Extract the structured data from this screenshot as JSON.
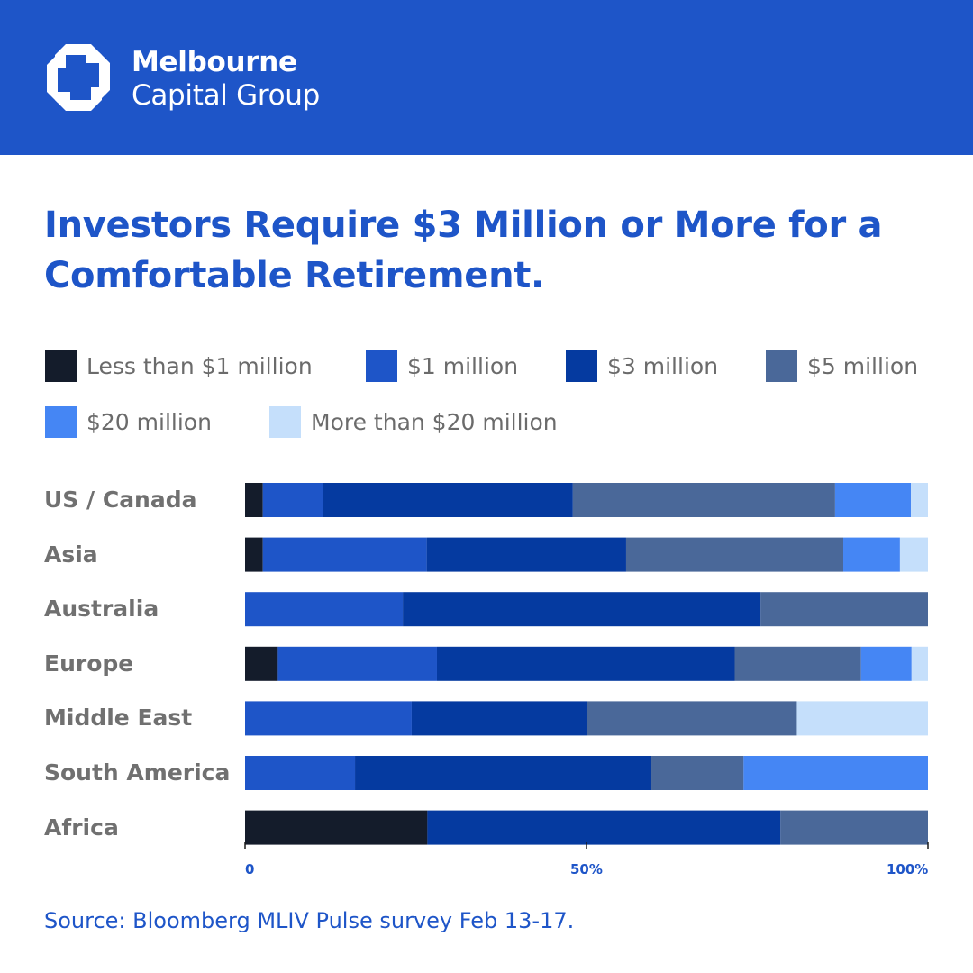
{
  "brand": {
    "name_line1": "Melbourne",
    "name_line2": "Capital Group",
    "logo_icon": "octagon-knot-icon",
    "color": "#1e55c8"
  },
  "source": "Source: Bloomberg MLIV Pulse survey Feb 13-17.",
  "chart_data": {
    "type": "bar",
    "orientation": "horizontal",
    "stacked": true,
    "title": "Investors Require $3 Million or More for a Comfortable Retirement.",
    "categories": [
      "US / Canada",
      "Asia",
      "Australia",
      "Europe",
      "Middle East",
      "South America",
      "Africa"
    ],
    "xlim": [
      0,
      100
    ],
    "x_ticks": [
      {
        "value": 0,
        "label": "0"
      },
      {
        "value": 50,
        "label": "50%"
      },
      {
        "value": 100,
        "label": "100%"
      }
    ],
    "grid": false,
    "legend_position": "top",
    "series": [
      {
        "name": "Less than $1 million",
        "color": "#141c2b",
        "values": [
          2.6,
          2.6,
          0,
          4.8,
          0,
          0,
          26.7
        ]
      },
      {
        "name": "$1 million",
        "color": "#1e55c8",
        "values": [
          8.8,
          24.0,
          23.1,
          23.3,
          24.4,
          16.1,
          0
        ]
      },
      {
        "name": "$3 million",
        "color": "#053aa0",
        "values": [
          36.6,
          29.2,
          52.4,
          43.6,
          25.6,
          43.4,
          51.7
        ]
      },
      {
        "name": "$5 million",
        "color": "#4a6899",
        "values": [
          38.4,
          31.8,
          24.5,
          18.5,
          30.8,
          13.5,
          21.6
        ]
      },
      {
        "name": "$20 million",
        "color": "#4586f4",
        "values": [
          11.1,
          8.3,
          0,
          7.4,
          0,
          27.0,
          0
        ]
      },
      {
        "name": "More than $20 million",
        "color": "#c5dffb",
        "values": [
          2.5,
          4.1,
          0,
          2.4,
          19.2,
          0,
          0
        ]
      }
    ]
  }
}
